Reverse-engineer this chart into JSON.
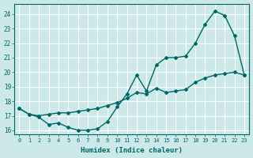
{
  "xlabel": "Humidex (Indice chaleur)",
  "background_color": "#cce8e8",
  "grid_color": "#ffffff",
  "line_color": "#006666",
  "xlim": [
    -0.5,
    23.5
  ],
  "ylim": [
    15.7,
    24.7
  ],
  "xticks": [
    0,
    1,
    2,
    3,
    4,
    5,
    6,
    7,
    8,
    9,
    10,
    11,
    12,
    13,
    14,
    15,
    16,
    17,
    18,
    19,
    20,
    21,
    22,
    23
  ],
  "yticks": [
    16,
    17,
    18,
    19,
    20,
    21,
    22,
    23,
    24
  ],
  "line1_x": [
    0,
    1,
    2,
    3,
    4,
    5,
    6,
    7,
    8,
    9,
    10,
    11,
    12,
    13,
    14,
    15,
    16,
    17,
    18,
    19,
    20,
    21,
    22,
    23
  ],
  "line1_y": [
    17.5,
    17.1,
    16.9,
    16.4,
    16.5,
    16.2,
    16.0,
    16.0,
    16.1,
    16.6,
    17.6,
    18.5,
    19.8,
    18.7,
    20.5,
    21.0,
    21.0,
    21.1,
    22.0,
    23.3,
    24.2,
    23.9,
    22.5,
    19.8
  ],
  "line2_x": [
    0,
    1,
    2,
    3,
    4,
    5,
    6,
    7,
    8,
    9,
    10,
    11,
    12,
    13,
    14,
    15,
    16,
    17,
    18,
    19,
    20,
    21,
    22,
    23
  ],
  "line2_y": [
    17.5,
    17.1,
    17.0,
    17.1,
    17.2,
    17.2,
    17.3,
    17.4,
    17.5,
    17.7,
    17.9,
    18.2,
    18.6,
    18.5,
    18.9,
    18.6,
    18.7,
    18.8,
    19.3,
    19.6,
    19.8,
    19.9,
    20.0,
    19.8
  ]
}
